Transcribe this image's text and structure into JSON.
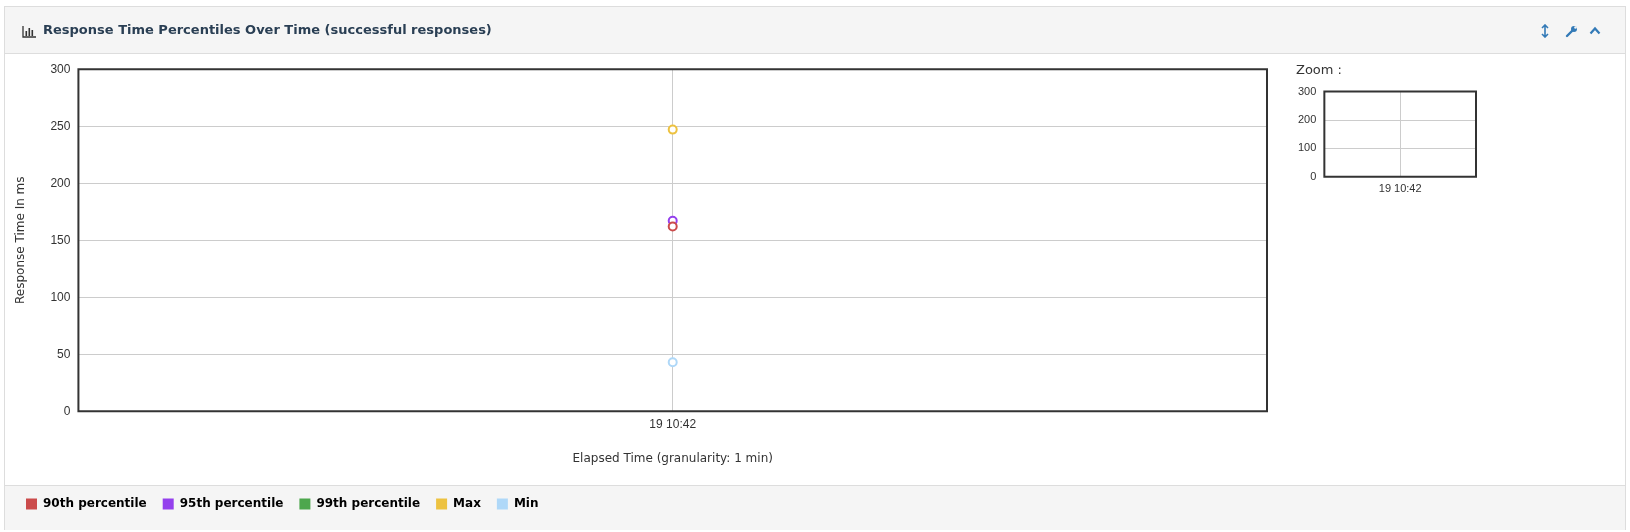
{
  "chart_data": [
    {
      "type": "line",
      "title": "Response Time Percentiles Over Time (successful responses)",
      "xlabel": "Elapsed Time (granularity: 1 min)",
      "ylabel": "Response Time In ms",
      "categories": [
        "19 10:42"
      ],
      "ylim": [
        0,
        300
      ],
      "yticks": [
        0,
        50,
        100,
        150,
        200,
        250,
        300
      ],
      "grid": true,
      "legend": "bottom left",
      "marker": "circle",
      "series": [
        {
          "name": "90th percentile",
          "color": "#cb4b4b",
          "values": [
            162
          ]
        },
        {
          "name": "95th percentile",
          "color": "#9440ed",
          "values": [
            167
          ]
        },
        {
          "name": "99th percentile",
          "color": "#4da74d",
          "values": [
            null
          ]
        },
        {
          "name": "Max",
          "color": "#edc240",
          "values": [
            247
          ]
        },
        {
          "name": "Min",
          "color": "#afd8f8",
          "values": [
            43
          ]
        }
      ]
    },
    {
      "type": "line",
      "title": "Zoom :",
      "categories": [
        "19 10:42"
      ],
      "ylim": [
        0,
        300
      ],
      "yticks": [
        0,
        100,
        200,
        300
      ],
      "grid": true,
      "marker": "none",
      "series": [
        {
          "color": "#cb4b4b",
          "values": [
            null
          ]
        }
      ]
    }
  ]
}
